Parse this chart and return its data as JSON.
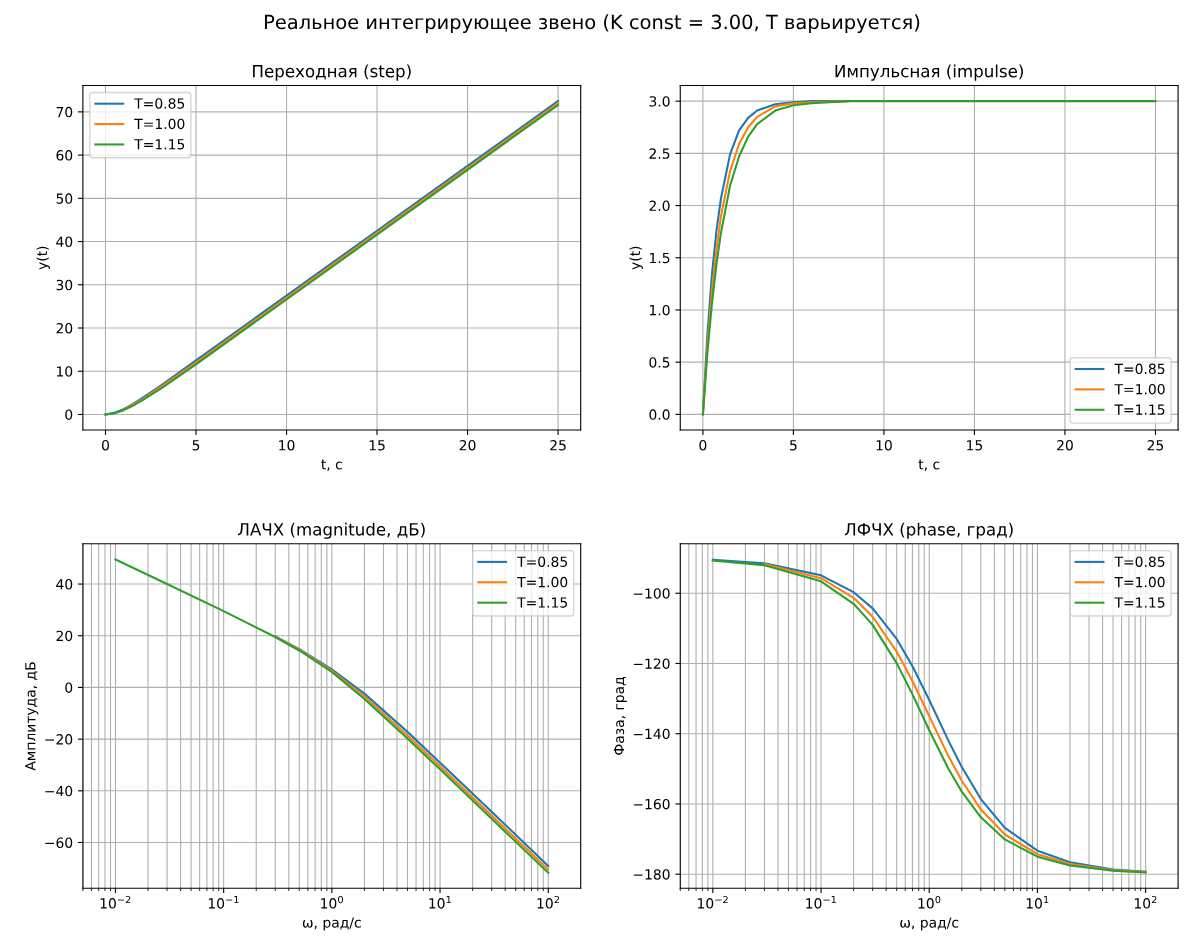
{
  "chart_data": [
    {
      "type": "other",
      "title": "Реальное интегрирующее звено (K const = 3.00, T варьируется)"
    },
    {
      "type": "line",
      "title": "Переходная (step)",
      "xlabel": "t, c",
      "ylabel": "y(t)",
      "x": [
        0,
        0.5,
        1,
        1.5,
        2,
        3,
        4,
        5,
        7.5,
        10,
        15,
        20,
        25
      ],
      "series": [
        {
          "name": "T=0.85",
          "color": "#1f77b4",
          "values": [
            0,
            0.4,
            1.2,
            2.4,
            3.7,
            6.5,
            9.5,
            12.5,
            20.0,
            27.5,
            42.5,
            57.5,
            72.5
          ]
        },
        {
          "name": "T=1.00",
          "color": "#ff7f0e",
          "values": [
            null,
            null,
            1.1,
            2.2,
            3.4,
            6.2,
            9.1,
            12.0,
            19.5,
            27.0,
            42.0,
            57.0,
            72.0
          ]
        },
        {
          "name": "T=1.15",
          "color": "#2ca02c",
          "values": [
            0,
            0.3,
            1.0,
            2.0,
            3.2,
            5.8,
            8.7,
            11.6,
            19.1,
            26.6,
            41.6,
            56.6,
            71.6
          ]
        }
      ],
      "xlim": [
        -1.25,
        26.25
      ],
      "ylim": [
        -3.6,
        76.1
      ],
      "xticks": [
        0,
        5,
        10,
        15,
        20,
        25
      ],
      "yticks": [
        0,
        10,
        20,
        30,
        40,
        50,
        60,
        70
      ],
      "grid": true,
      "legend": "top left"
    },
    {
      "type": "line",
      "title": "Импульсная (impulse)",
      "xlabel": "t, c",
      "ylabel": "y(t)",
      "x": [
        0,
        0.25,
        0.5,
        0.75,
        1,
        1.5,
        2,
        2.5,
        3,
        4,
        5,
        6,
        8,
        10,
        15,
        20,
        25
      ],
      "series": [
        {
          "name": "T=0.85",
          "color": "#1f77b4",
          "values": [
            0,
            0.77,
            1.34,
            1.76,
            2.07,
            2.49,
            2.72,
            2.84,
            2.91,
            2.97,
            2.99,
            3.0,
            3.0,
            null,
            null,
            null,
            null
          ]
        },
        {
          "name": "T=1.00",
          "color": "#ff7f0e",
          "values": [
            0,
            0.66,
            1.18,
            1.58,
            1.9,
            2.33,
            2.59,
            2.75,
            2.85,
            2.95,
            2.98,
            2.99,
            3.0,
            null,
            null,
            null,
            null
          ]
        },
        {
          "name": "T=1.15",
          "color": "#2ca02c",
          "values": [
            0,
            0.59,
            1.06,
            1.44,
            1.74,
            2.19,
            2.47,
            2.66,
            2.78,
            2.91,
            2.96,
            2.98,
            3.0,
            3.0,
            3.0,
            3.0,
            3.0
          ]
        }
      ],
      "xlim": [
        -1.25,
        26.25
      ],
      "ylim": [
        -0.15,
        3.15
      ],
      "xticks": [
        0,
        5,
        10,
        15,
        20,
        25
      ],
      "yticks": [
        {
          "value": 0,
          "label": "0.0"
        },
        {
          "value": 0.5,
          "label": "0.5"
        },
        {
          "value": 1,
          "label": "1.0"
        },
        {
          "value": 1.5,
          "label": "1.5"
        },
        {
          "value": 2,
          "label": "2.0"
        },
        {
          "value": 2.5,
          "label": "2.5"
        },
        {
          "value": 3,
          "label": "3.0"
        }
      ],
      "grid": true,
      "legend": "bottom right"
    },
    {
      "type": "line",
      "title": "ЛАЧХ (magnitude, дБ)",
      "xlabel": "ω, рад/с",
      "ylabel": "Амплитуда, дБ",
      "log": "x",
      "x": [
        0.01,
        0.03,
        0.1,
        0.3,
        0.5,
        1,
        2,
        5,
        10,
        30,
        100
      ],
      "series": [
        {
          "name": "T=0.85",
          "color": "#1f77b4",
          "values": [
            null,
            null,
            null,
            19.7,
            14.8,
            7.0,
            -2.4,
            -17.2,
            -29.1,
            -48.1,
            -69.1
          ]
        },
        {
          "name": "T=1.00",
          "color": "#ff7f0e",
          "values": [
            null,
            null,
            null,
            19.6,
            14.6,
            6.5,
            -3.5,
            -18.6,
            -30.5,
            -49.6,
            -70.5
          ]
        },
        {
          "name": "T=1.15",
          "color": "#2ca02c",
          "values": [
            49.5,
            40.0,
            29.5,
            19.5,
            14.3,
            6.0,
            -4.5,
            -19.8,
            -31.7,
            -50.8,
            -71.7
          ]
        }
      ],
      "xlim": [
        0.005,
        199.5
      ],
      "ylim": [
        -77.7,
        55.6
      ],
      "xticks": [
        {
          "value": 0.01,
          "label": "10$^{−2}$"
        },
        {
          "value": 0.1,
          "label": "10$^{−1}$"
        },
        {
          "value": 1,
          "label": "10$^{0}$"
        },
        {
          "value": 10,
          "label": "10$^{1}$"
        },
        {
          "value": 100,
          "label": "10$^{2}$"
        }
      ],
      "yticks": [
        {
          "value": -60,
          "label": "−60"
        },
        {
          "value": -40,
          "label": "−40"
        },
        {
          "value": -20,
          "label": "−20"
        },
        0,
        20,
        40
      ],
      "grid": true,
      "legend": "top right"
    },
    {
      "type": "line",
      "title": "ЛФЧХ (phase, град)",
      "xlabel": "ω, рад/с",
      "ylabel": "Фаза, град",
      "log": "x",
      "x": [
        0.01,
        0.03,
        0.1,
        0.2,
        0.3,
        0.5,
        0.7,
        1,
        1.5,
        2,
        3,
        5,
        10,
        20,
        50,
        100
      ],
      "series": [
        {
          "name": "T=0.85",
          "color": "#1f77b4",
          "values": [
            -90.5,
            -91.5,
            -94.9,
            -99.7,
            -104.3,
            -113.0,
            -120.8,
            -130.4,
            -141.9,
            -149.5,
            -158.6,
            -166.8,
            -173.3,
            -176.6,
            -178.7,
            -179.3
          ]
        },
        {
          "name": "T=1.00",
          "color": "#ff7f0e",
          "values": [
            null,
            -91.7,
            -95.7,
            -101.3,
            -106.7,
            -116.6,
            -125.0,
            -135.0,
            -146.3,
            -153.4,
            -161.6,
            -168.7,
            -174.3,
            -177.1,
            -178.9,
            -179.4
          ]
        },
        {
          "name": "T=1.15",
          "color": "#2ca02c",
          "values": [
            -90.7,
            -92.0,
            -96.6,
            -103.0,
            -109.0,
            -119.9,
            -128.8,
            -139.0,
            -149.9,
            -156.5,
            -163.8,
            -170.1,
            -175.0,
            -177.5,
            -179.0,
            -179.5
          ]
        }
      ],
      "xlim": [
        0.005,
        199.5
      ],
      "ylim": [
        -184.0,
        -85.9
      ],
      "xticks": [
        {
          "value": 0.01,
          "label": "10$^{−2}$"
        },
        {
          "value": 0.1,
          "label": "10$^{−1}$"
        },
        {
          "value": 1,
          "label": "10$^{0}$"
        },
        {
          "value": 10,
          "label": "10$^{1}$"
        },
        {
          "value": 100,
          "label": "10$^{2}$"
        }
      ],
      "yticks": [
        {
          "value": -180,
          "label": "−180"
        },
        {
          "value": -160,
          "label": "−160"
        },
        {
          "value": -140,
          "label": "−140"
        },
        {
          "value": -120,
          "label": "−120"
        },
        {
          "value": -100,
          "label": "−100"
        }
      ],
      "grid": true,
      "legend": "top right"
    }
  ]
}
